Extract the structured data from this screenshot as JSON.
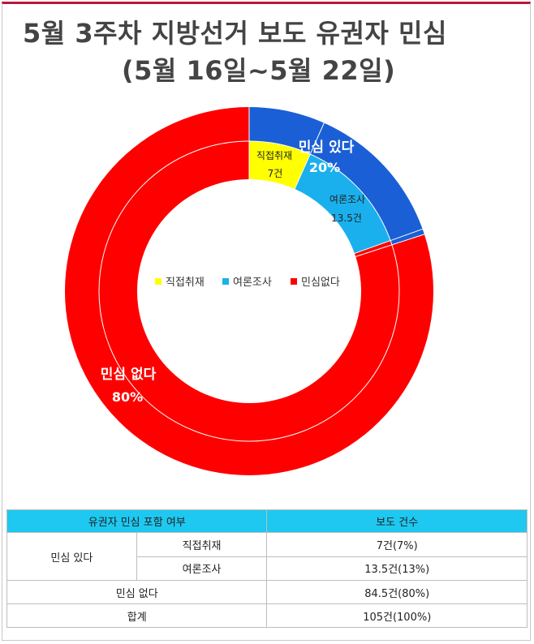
{
  "title_line1": "5월 3주차 지방선거 보도 유권자 민심",
  "title_line2": "(5월 16일~5월 22일)",
  "chart_data": {
    "type": "pie",
    "donut": true,
    "rings": [
      {
        "ring": "outer",
        "slices": [
          {
            "label": "민심 있다",
            "value": 20,
            "unit": "%",
            "color": "#1a5fd6"
          },
          {
            "label": "민심 없다",
            "value": 80,
            "unit": "%",
            "color": "#ff0000"
          }
        ]
      },
      {
        "ring": "inner",
        "slices": [
          {
            "label": "직접취재",
            "value": 7,
            "unit": "건",
            "color": "#ffff00"
          },
          {
            "label": "여론조사",
            "value": 13.5,
            "unit": "건",
            "color": "#1ab0ee"
          },
          {
            "label": "민심없다",
            "value": 84.5,
            "unit": "건",
            "color": "#ff0000"
          }
        ]
      }
    ],
    "legend": [
      "직접취재",
      "여론조사",
      "민심없다"
    ],
    "legend_placement": "center"
  },
  "labels": {
    "outer_yes_name": "민심 있다",
    "outer_yes_pct": "20%",
    "outer_no_name": "민심 없다",
    "outer_no_pct": "80%",
    "inner_direct_name": "직접취재",
    "inner_direct_val": "7건",
    "inner_poll_name": "여론조사",
    "inner_poll_val": "13.5건"
  },
  "table": {
    "headers": [
      "유권자 민심 포함 여부",
      "보도 건수"
    ],
    "group_yes": "민심 있다",
    "row_direct_label": "직접취재",
    "row_direct_value": "7건(7%)",
    "row_poll_label": "여론조사",
    "row_poll_value": "13.5건(13%)",
    "row_no_label": "민심 없다",
    "row_no_value": "84.5건(80%)",
    "row_total_label": "합계",
    "row_total_value": "105건(100%)"
  }
}
